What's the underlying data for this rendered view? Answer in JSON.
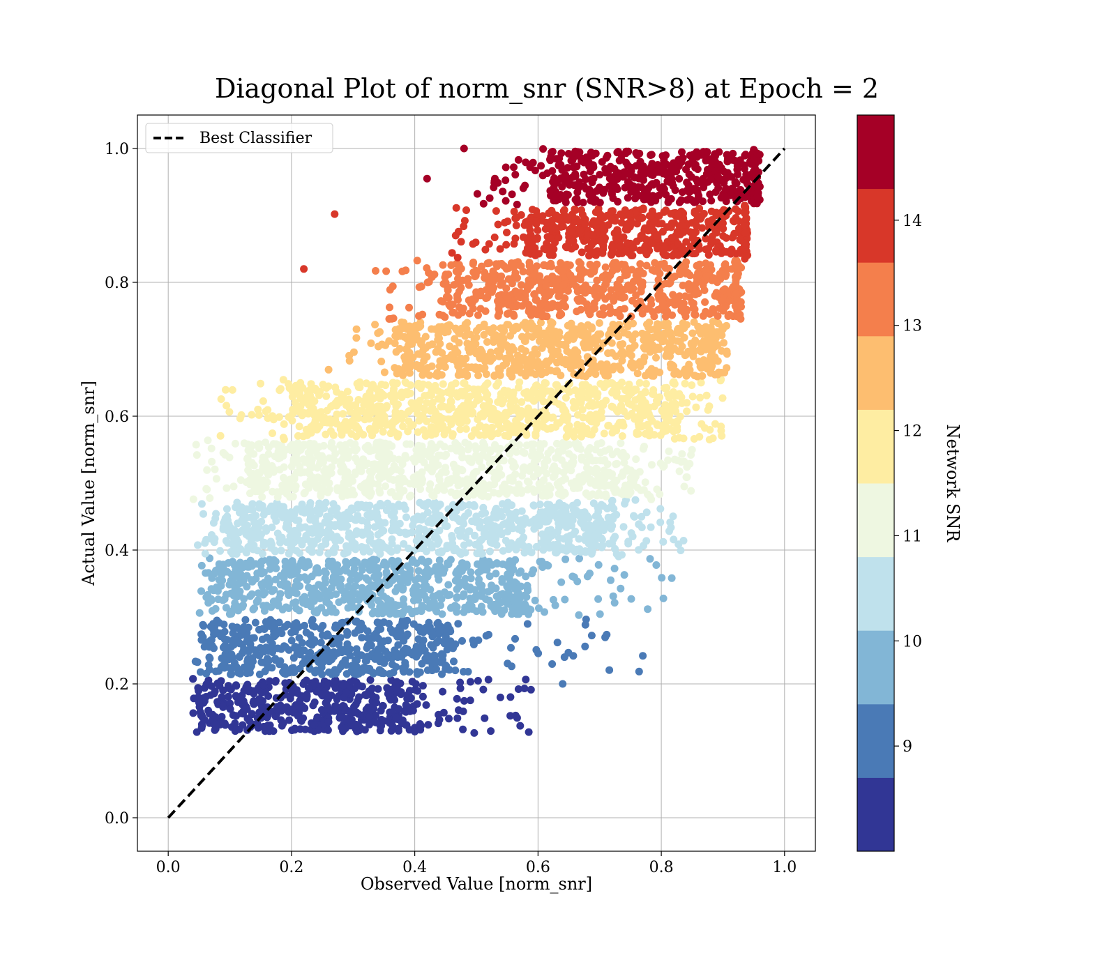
{
  "chart_data": {
    "type": "scatter",
    "title": "Diagonal Plot of norm_snr (SNR>8) at Epoch = 2",
    "xlabel": "Observed Value [norm_snr]",
    "ylabel": "Actual Value [norm_snr]",
    "xlim": [
      -0.05,
      1.05
    ],
    "ylim": [
      -0.05,
      1.05
    ],
    "xticks": [
      0.0,
      0.2,
      0.4,
      0.6,
      0.8,
      1.0
    ],
    "yticks": [
      0.0,
      0.2,
      0.4,
      0.6,
      0.8,
      1.0
    ],
    "x_tick_labels": [
      "0.0",
      "0.2",
      "0.4",
      "0.6",
      "0.8",
      "1.0"
    ],
    "y_tick_labels": [
      "0.0",
      "0.2",
      "0.4",
      "0.6",
      "0.8",
      "1.0"
    ],
    "grid": true,
    "legend": {
      "placement": "upper-left",
      "entries": [
        "Best Classifier"
      ]
    },
    "reference_line": {
      "name": "Best Classifier",
      "style": "dashed",
      "color": "#000000",
      "x": [
        0.0,
        1.0
      ],
      "y": [
        0.0,
        1.0
      ]
    },
    "colorbar": {
      "label": "Network SNR",
      "range": [
        8.0,
        15.0
      ],
      "ticks": [
        9,
        10,
        11,
        12,
        13,
        14
      ],
      "tick_labels": [
        "9",
        "10",
        "11",
        "12",
        "13",
        "14"
      ],
      "bins": [
        {
          "from": 8.0,
          "to": 8.7,
          "color": "#313695"
        },
        {
          "from": 8.7,
          "to": 9.4,
          "color": "#4a7ab6"
        },
        {
          "from": 9.4,
          "to": 10.1,
          "color": "#82b6d6"
        },
        {
          "from": 10.1,
          "to": 10.8,
          "color": "#bfe1ec"
        },
        {
          "from": 10.8,
          "to": 11.5,
          "color": "#eef7e1"
        },
        {
          "from": 11.5,
          "to": 12.2,
          "color": "#feeda2"
        },
        {
          "from": 12.2,
          "to": 12.9,
          "color": "#fdbe70"
        },
        {
          "from": 12.9,
          "to": 13.6,
          "color": "#f47f4c"
        },
        {
          "from": 13.6,
          "to": 14.3,
          "color": "#d83729"
        },
        {
          "from": 14.3,
          "to": 15.0,
          "color": "#a50026"
        }
      ]
    },
    "bands": [
      {
        "snr": 8.35,
        "y_range": [
          0.125,
          0.21
        ],
        "core_x": [
          0.05,
          0.4
        ],
        "outlier_x_max": 0.59
      },
      {
        "snr": 9.05,
        "y_range": [
          0.21,
          0.3
        ],
        "core_x": [
          0.06,
          0.45
        ],
        "outlier_x_max": 0.77
      },
      {
        "snr": 9.75,
        "y_range": [
          0.3,
          0.39
        ],
        "core_x": [
          0.07,
          0.58
        ],
        "outlier_x_max": 0.82
      },
      {
        "snr": 10.45,
        "y_range": [
          0.39,
          0.475
        ],
        "core_x": [
          0.09,
          0.72
        ],
        "outlier_x_max": 0.84
      },
      {
        "snr": 11.15,
        "y_range": [
          0.475,
          0.565
        ],
        "core_x": [
          0.13,
          0.75
        ],
        "outlier_x_max": 0.86
      },
      {
        "snr": 11.85,
        "y_range": [
          0.565,
          0.655
        ],
        "core_x": [
          0.2,
          0.82
        ],
        "outlier_x_max": 0.9
      },
      {
        "snr": 12.55,
        "y_range": [
          0.655,
          0.745
        ],
        "core_x": [
          0.38,
          0.88
        ],
        "outlier_x_max": 0.91
      },
      {
        "snr": 13.25,
        "y_range": [
          0.745,
          0.835
        ],
        "core_x": [
          0.45,
          0.92
        ],
        "outlier_x_max": 0.93
      },
      {
        "snr": 13.95,
        "y_range": [
          0.835,
          0.915
        ],
        "core_x": [
          0.58,
          0.935
        ],
        "outlier_x_max": 0.94
      },
      {
        "snr": 14.65,
        "y_range": [
          0.915,
          1.0
        ],
        "core_x": [
          0.62,
          0.95
        ],
        "outlier_x_max": 0.96
      }
    ],
    "marked_outliers": [
      {
        "x": 0.27,
        "y": 0.902,
        "snr": 13.95
      },
      {
        "x": 0.22,
        "y": 0.82,
        "snr": 13.95
      },
      {
        "x": 0.48,
        "y": 1.0,
        "snr": 14.65
      },
      {
        "x": 0.42,
        "y": 0.955,
        "snr": 14.65
      },
      {
        "x": 0.77,
        "y": 0.242,
        "snr": 9.05
      },
      {
        "x": 0.817,
        "y": 0.358,
        "snr": 9.75
      },
      {
        "x": 0.585,
        "y": 0.128,
        "snr": 8.35
      },
      {
        "x": 0.64,
        "y": 0.2,
        "snr": 9.05
      }
    ]
  }
}
